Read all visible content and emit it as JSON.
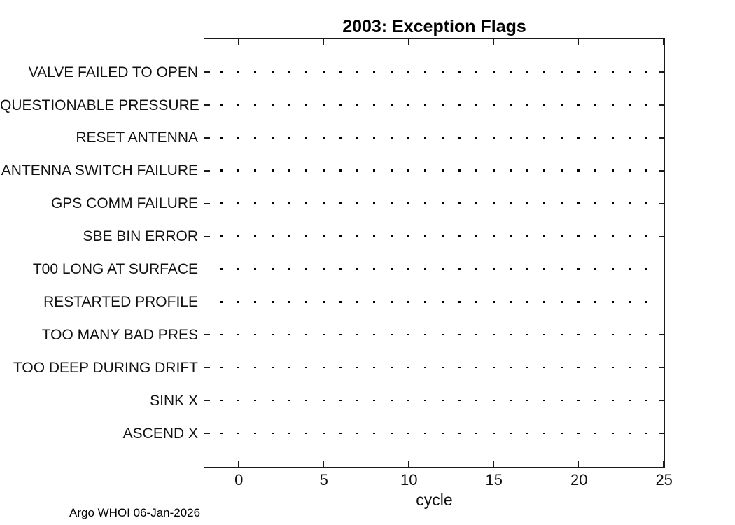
{
  "title": "2003: Exception Flags",
  "footer": "Argo WHOI 06-Jan-2026",
  "chart_data": {
    "type": "scatter",
    "title": "2003: Exception Flags",
    "xlabel": "cycle",
    "ylabel": "",
    "xlim": [
      -2,
      25
    ],
    "x_ticks": [
      0,
      5,
      10,
      15,
      20,
      25
    ],
    "categories": [
      "VALVE FAILED TO OPEN",
      "QUESTIONABLE PRESSURE",
      "RESET ANTENNA",
      "ANTENNA SWITCH FAILURE",
      "GPS COMM FAILURE",
      "SBE BIN ERROR",
      "T00 LONG AT SURFACE",
      "RESTARTED PROFILE",
      "TOO MANY BAD PRES",
      "TOO DEEP DURING DRIFT",
      "SINK X",
      "ASCEND X"
    ],
    "baseline_dot_x": [
      -1,
      0,
      1,
      2,
      3,
      4,
      5,
      6,
      7,
      8,
      9,
      10,
      11,
      12,
      13,
      14,
      15,
      16,
      17,
      18,
      19,
      20,
      21,
      22,
      23,
      24
    ],
    "flagged_points": [],
    "grid": false,
    "legend": null,
    "marker_color": "#000000",
    "axis_color": "#1a1a1a",
    "background_color": "#ffffff"
  }
}
